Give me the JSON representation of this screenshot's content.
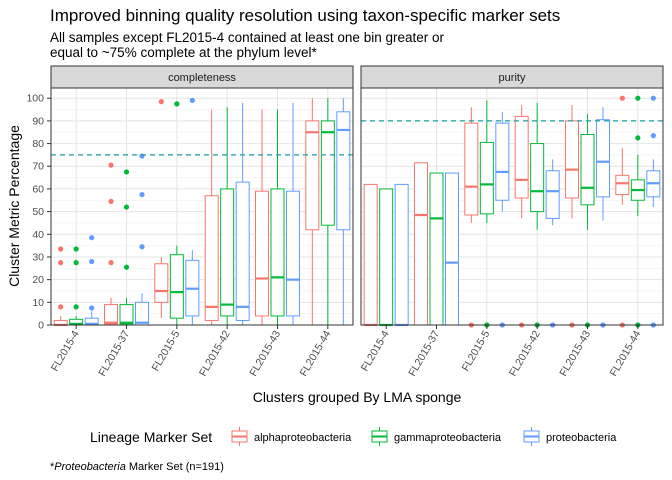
{
  "chart_data": {
    "type": "boxplot",
    "title": "Improved binning quality resolution using taxon-specific marker sets",
    "subtitle_lines": [
      "All samples except FL2015-4 contained at least one bin greater or",
      "equal to ~75% complete at the phylum level*"
    ],
    "xlabel": "Clusters grouped By LMA sponge",
    "ylabel": "Cluster Metric Percentage",
    "ylim": [
      0,
      100
    ],
    "yticks": [
      "0",
      "10",
      "20",
      "30",
      "40",
      "50",
      "60",
      "70",
      "80",
      "90",
      "100"
    ],
    "categories": [
      "FL2015-4",
      "FL2015-37",
      "FL2015-5",
      "FL2015-42",
      "FL2015-43",
      "FL2015-44"
    ],
    "legend": {
      "title": "Lineage Marker Set",
      "position": "bottom",
      "entries": [
        {
          "name": "alphaproteobacteria",
          "color": "#F8766D"
        },
        {
          "name": "gammaproteobacteria",
          "color": "#00BA38"
        },
        {
          "name": "proteobacteria",
          "color": "#619CFF"
        }
      ]
    },
    "grid": true,
    "facets": [
      {
        "label": "completeness",
        "reference_line": 75,
        "series": [
          {
            "name": "alphaproteobacteria",
            "boxes": [
              {
                "min": 0,
                "q1": 0,
                "median": 0,
                "q3": 2,
                "max": 4,
                "outliers": [
                  8,
                  27.5,
                  33.5
                ]
              },
              {
                "min": 0,
                "q1": 0.5,
                "median": 1,
                "q3": 9,
                "max": 12,
                "outliers": [
                  27.5,
                  54.5,
                  70.5
                ]
              },
              {
                "min": 3,
                "q1": 10,
                "median": 15,
                "q3": 27,
                "max": 30,
                "outliers": [
                  98.5
                ]
              },
              {
                "min": 0,
                "q1": 2,
                "median": 8,
                "q3": 57,
                "max": 95,
                "outliers": []
              },
              {
                "min": 0,
                "q1": 4,
                "median": 20.5,
                "q3": 59,
                "max": 95,
                "outliers": []
              },
              {
                "min": 0,
                "q1": 42,
                "median": 85,
                "q3": 90,
                "max": 100,
                "outliers": []
              }
            ]
          },
          {
            "name": "gammaproteobacteria",
            "boxes": [
              {
                "min": 0,
                "q1": 0,
                "median": 0.5,
                "q3": 2.5,
                "max": 4,
                "outliers": [
                  8,
                  27.5,
                  33.5
                ]
              },
              {
                "min": 0,
                "q1": 0.5,
                "median": 1,
                "q3": 9,
                "max": 12,
                "outliers": [
                  25.5,
                  52,
                  67.5
                ]
              },
              {
                "min": 0,
                "q1": 3,
                "median": 14.5,
                "q3": 31,
                "max": 35,
                "outliers": [
                  97.5
                ]
              },
              {
                "min": 0,
                "q1": 4,
                "median": 9,
                "q3": 60,
                "max": 96,
                "outliers": []
              },
              {
                "min": 0,
                "q1": 4,
                "median": 21,
                "q3": 60,
                "max": 95,
                "outliers": []
              },
              {
                "min": 0,
                "q1": 44,
                "median": 85,
                "q3": 90,
                "max": 100,
                "outliers": []
              }
            ]
          },
          {
            "name": "proteobacteria",
            "boxes": [
              {
                "min": 0,
                "q1": 0,
                "median": 0.5,
                "q3": 3,
                "max": 6,
                "outliers": [
                  7.5,
                  28,
                  38.5
                ]
              },
              {
                "min": 0,
                "q1": 0,
                "median": 1,
                "q3": 10,
                "max": 14,
                "outliers": [
                  34.5,
                  57.5,
                  74.5
                ]
              },
              {
                "min": 0,
                "q1": 4,
                "median": 16,
                "q3": 28.5,
                "max": 33,
                "outliers": [
                  99
                ]
              },
              {
                "min": 0,
                "q1": 2,
                "median": 8,
                "q3": 63,
                "max": 98,
                "outliers": []
              },
              {
                "min": 0,
                "q1": 4,
                "median": 20,
                "q3": 59,
                "max": 98,
                "outliers": []
              },
              {
                "min": 0,
                "q1": 42,
                "median": 86,
                "q3": 94,
                "max": 100,
                "outliers": []
              }
            ]
          }
        ]
      },
      {
        "label": "purity",
        "reference_line": 90,
        "series": [
          {
            "name": "alphaproteobacteria",
            "boxes": [
              {
                "min": 0,
                "q1": 0,
                "median": 0,
                "q3": 62,
                "max": 62,
                "outliers": []
              },
              {
                "min": 0,
                "q1": 0,
                "median": 48.5,
                "q3": 71.5,
                "max": 71.5,
                "outliers": []
              },
              {
                "min": 45,
                "q1": 48.5,
                "median": 61,
                "q3": 89,
                "max": 96,
                "outliers": [
                  0
                ]
              },
              {
                "min": 47,
                "q1": 56,
                "median": 64,
                "q3": 92,
                "max": 97,
                "outliers": [
                  0
                ]
              },
              {
                "min": 47,
                "q1": 56,
                "median": 68.5,
                "q3": 90,
                "max": 97,
                "outliers": [
                  0
                ]
              },
              {
                "min": 53,
                "q1": 57.5,
                "median": 62.5,
                "q3": 66,
                "max": 78,
                "outliers": [
                  0,
                  100
                ]
              }
            ]
          },
          {
            "name": "gammaproteobacteria",
            "boxes": [
              {
                "min": 0,
                "q1": 0,
                "median": 0,
                "q3": 60,
                "max": 60,
                "outliers": []
              },
              {
                "min": 0,
                "q1": 0,
                "median": 47,
                "q3": 67,
                "max": 67,
                "outliers": []
              },
              {
                "min": 45,
                "q1": 49,
                "median": 62,
                "q3": 80.5,
                "max": 99,
                "outliers": [
                  0
                ]
              },
              {
                "min": 42,
                "q1": 50,
                "median": 59,
                "q3": 80,
                "max": 98,
                "outliers": [
                  0
                ]
              },
              {
                "min": 42,
                "q1": 53,
                "median": 60.5,
                "q3": 84,
                "max": 93,
                "outliers": [
                  0
                ]
              },
              {
                "min": 48,
                "q1": 55,
                "median": 59.5,
                "q3": 64,
                "max": 75,
                "outliers": [
                  0,
                  82.5,
                  100
                ]
              }
            ]
          },
          {
            "name": "proteobacteria",
            "boxes": [
              {
                "min": 0,
                "q1": 0,
                "median": 0,
                "q3": 62,
                "max": 62,
                "outliers": []
              },
              {
                "min": 0,
                "q1": 0,
                "median": 27.5,
                "q3": 67,
                "max": 67,
                "outliers": []
              },
              {
                "min": 50,
                "q1": 55,
                "median": 67.5,
                "q3": 89,
                "max": 94,
                "outliers": [
                  0
                ]
              },
              {
                "min": 44,
                "q1": 47,
                "median": 59,
                "q3": 68,
                "max": 73,
                "outliers": [
                  0
                ]
              },
              {
                "min": 46,
                "q1": 56.5,
                "median": 72,
                "q3": 90.5,
                "max": 96,
                "outliers": [
                  0
                ]
              },
              {
                "min": 52,
                "q1": 56.5,
                "median": 62.5,
                "q3": 68,
                "max": 73,
                "outliers": [
                  0,
                  83.5,
                  100
                ]
              }
            ]
          }
        ]
      }
    ]
  },
  "footnote": {
    "prefix": "*",
    "italic": "Proteobacteria",
    "suffix": " Marker Set (n=191)"
  }
}
